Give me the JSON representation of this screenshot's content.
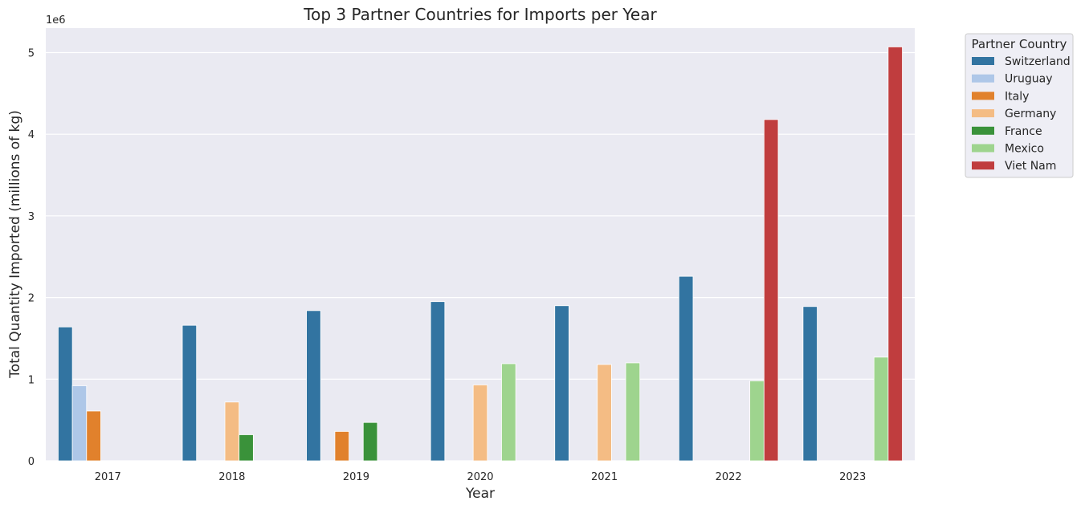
{
  "chart_data": {
    "type": "bar",
    "title": "Top 3 Partner Countries for Imports per Year",
    "xlabel": "Year",
    "ylabel": "Total Quantity Imported (millions of kg)",
    "offset_label": "1e6",
    "ylim": [
      0,
      5300000
    ],
    "yticks": [
      0,
      1000000,
      2000000,
      3000000,
      4000000,
      5000000
    ],
    "ytick_labels": [
      "0",
      "1",
      "2",
      "3",
      "4",
      "5"
    ],
    "grid": true,
    "legend_position": "outside-top-right",
    "legend_title": "Partner Country",
    "categories": [
      "2017",
      "2018",
      "2019",
      "2020",
      "2021",
      "2022",
      "2023"
    ],
    "series": [
      {
        "name": "Switzerland",
        "color": "#3274a1",
        "values": [
          1640000,
          1660000,
          1840000,
          1950000,
          1900000,
          2260000,
          1890000
        ]
      },
      {
        "name": "Uruguay",
        "color": "#aec7e8",
        "values": [
          920000,
          null,
          null,
          null,
          null,
          null,
          null
        ]
      },
      {
        "name": "Italy",
        "color": "#e1812c",
        "values": [
          610000,
          null,
          360000,
          null,
          null,
          null,
          null
        ]
      },
      {
        "name": "Germany",
        "color": "#f4bc84",
        "values": [
          null,
          720000,
          null,
          930000,
          1180000,
          null,
          null
        ]
      },
      {
        "name": "France",
        "color": "#3a923a",
        "values": [
          null,
          320000,
          470000,
          null,
          null,
          null,
          null
        ]
      },
      {
        "name": "Mexico",
        "color": "#9ed48e",
        "values": [
          null,
          null,
          null,
          1190000,
          1200000,
          980000,
          1270000
        ]
      },
      {
        "name": "Viet Nam",
        "color": "#c03d3e",
        "values": [
          null,
          null,
          null,
          null,
          null,
          4180000,
          5070000
        ]
      }
    ],
    "colors": {
      "background": "#eaeaf2",
      "grid": "#ffffff"
    }
  }
}
